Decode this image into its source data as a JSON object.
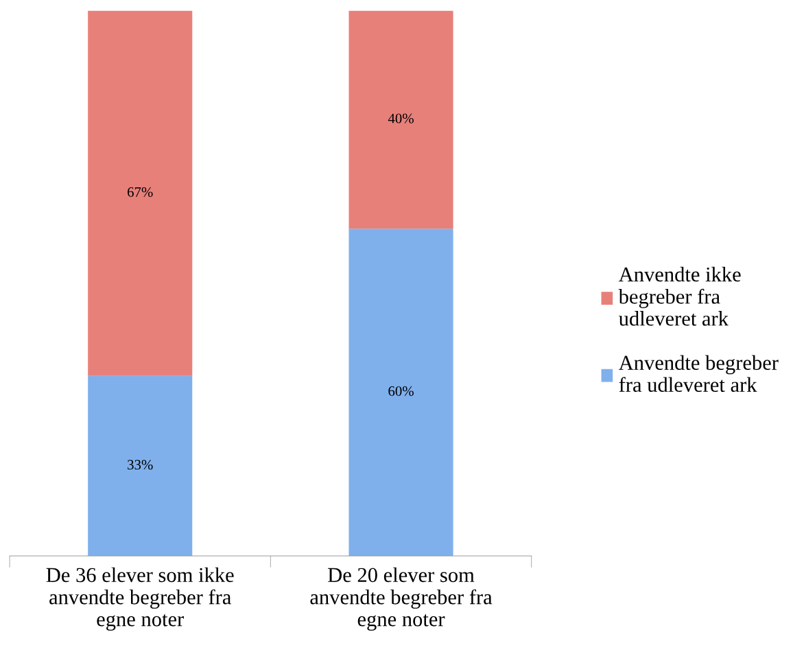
{
  "chart_data": {
    "type": "bar",
    "stacked": true,
    "categories": [
      "De 36 elever som ikke\nanvendte begreber fra\negne noter",
      "De 20 elever som\nanvendte begreber fra\negne noter"
    ],
    "series": [
      {
        "name": "Anvendte begreber\nfra udleveret ark",
        "color": "#7fb0ec",
        "values": [
          33,
          60
        ],
        "value_labels": [
          "33%",
          "60%"
        ]
      },
      {
        "name": "Anvendte ikke\nbegreber fra\nudleveret ark",
        "color": "#e8807a",
        "values": [
          67,
          40
        ],
        "value_labels": [
          "67%",
          "40%"
        ]
      }
    ],
    "legend": "right",
    "grid": false
  }
}
